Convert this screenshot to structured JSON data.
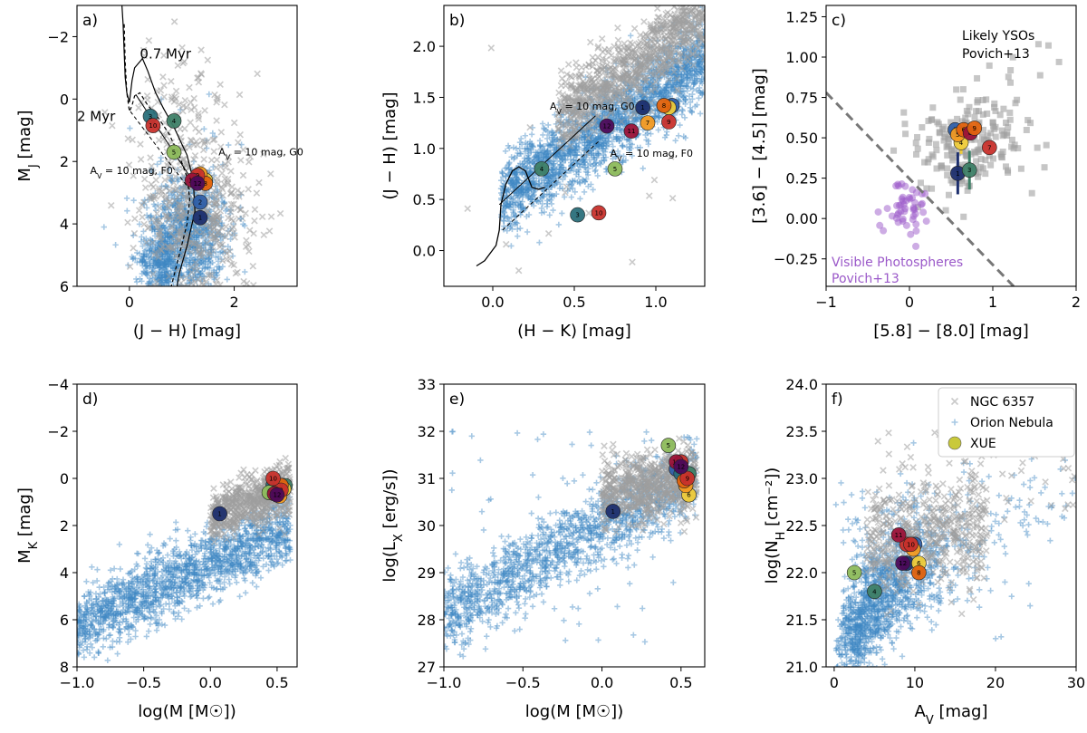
{
  "colors": {
    "ngc": "#9e9e9e",
    "orion": "#3d87c4",
    "xue": "#c9c93a",
    "purple": "#9b59c9",
    "grey_sq": "#a0a0a0",
    "dash": "#777777"
  },
  "xue_palette": [
    "#1d2f6e",
    "#2f5fa8",
    "#2a6f7a",
    "#3e8067",
    "#8dbb5b",
    "#eecb3a",
    "#f29a22",
    "#e2630e",
    "#c8322c",
    "#9a1238",
    "#4c0a5a",
    "#23134a",
    "#6a2c8a",
    "#3a7f8f"
  ],
  "chart_data": [
    {
      "id": "a",
      "panel_label": "a)",
      "type": "scatter",
      "xlabel": "(J − H) [mag]",
      "ylabel": "M_J [mag]",
      "xlim": [
        -1,
        3.2
      ],
      "ylim": [
        6,
        -3
      ],
      "y_inverted": true,
      "xticks": [
        0,
        2
      ],
      "yticks": [
        -2,
        0,
        2,
        4,
        6
      ],
      "xtick_labels": [
        "0",
        "2"
      ],
      "ytick_labels": [
        "−2",
        "0",
        "2",
        "4",
        "6"
      ],
      "annotations": [
        {
          "text": "0.7 Myr",
          "at": [
            0.2,
            -1.3
          ]
        },
        {
          "text": "2 Myr",
          "at": [
            -1.0,
            0.7
          ]
        },
        {
          "text": "A_V = 10 mag, G0",
          "at": [
            1.7,
            1.8
          ]
        },
        {
          "text": "A_V = 10 mag, F0",
          "at": [
            -0.75,
            2.4
          ]
        }
      ],
      "isochrones": {
        "0.7 Myr": [
          [
            -0.15,
            -3.2
          ],
          [
            -0.12,
            -2.4
          ],
          [
            -0.1,
            -1.5
          ],
          [
            -0.08,
            -0.7
          ],
          [
            -0.05,
            -0.2
          ],
          [
            0.0,
            0.1
          ],
          [
            0.05,
            -0.6
          ],
          [
            0.1,
            -1.0
          ],
          [
            0.25,
            -1.3
          ],
          [
            0.35,
            -0.9
          ],
          [
            0.5,
            -0.2
          ],
          [
            0.65,
            0.3
          ],
          [
            0.85,
            0.9
          ],
          [
            1.1,
            1.8
          ],
          [
            1.22,
            2.6
          ],
          [
            1.25,
            3.6
          ],
          [
            1.1,
            4.7
          ],
          [
            0.95,
            5.6
          ],
          [
            0.9,
            6.1
          ]
        ],
        "2 Myr": [
          [
            -0.1,
            -2.4
          ],
          [
            -0.08,
            -1.2
          ],
          [
            -0.05,
            -0.2
          ],
          [
            0.0,
            0.4
          ],
          [
            0.05,
            0.2
          ],
          [
            0.1,
            -0.1
          ],
          [
            0.2,
            -0.2
          ],
          [
            0.35,
            0.2
          ],
          [
            0.55,
            0.6
          ],
          [
            0.75,
            1.1
          ],
          [
            0.95,
            1.8
          ],
          [
            1.1,
            2.5
          ],
          [
            1.15,
            3.2
          ],
          [
            1.1,
            4.0
          ],
          [
            0.95,
            5.0
          ],
          [
            0.8,
            6.0
          ]
        ]
      },
      "reddening": [
        {
          "from": [
            0.12,
            -0.15
          ],
          "to": [
            1.2,
            2.6
          ]
        },
        {
          "from": [
            0.02,
            0.4
          ],
          "to": [
            1.15,
            2.9
          ]
        }
      ],
      "xue": [
        {
          "n": 1,
          "x": 1.35,
          "y": 3.8,
          "c": 0
        },
        {
          "n": 2,
          "x": 1.35,
          "y": 3.3,
          "c": 1
        },
        {
          "n": 3,
          "x": 0.4,
          "y": 0.55,
          "c": 2
        },
        {
          "n": 4,
          "x": 0.85,
          "y": 0.7,
          "c": 3
        },
        {
          "n": 5,
          "x": 0.85,
          "y": 1.7,
          "c": 4
        },
        {
          "n": 6,
          "x": 1.45,
          "y": 2.6,
          "c": 5
        },
        {
          "n": 7,
          "x": 1.35,
          "y": 2.4,
          "c": 6
        },
        {
          "n": 8,
          "x": 1.45,
          "y": 2.7,
          "c": 7
        },
        {
          "n": 9,
          "x": 1.3,
          "y": 2.45,
          "c": 8
        },
        {
          "n": 10,
          "x": 0.45,
          "y": 0.85,
          "c": 8
        },
        {
          "n": 11,
          "x": 1.2,
          "y": 2.6,
          "c": 9
        },
        {
          "n": 12,
          "x": 1.3,
          "y": 2.7,
          "c": 10
        }
      ]
    },
    {
      "id": "b",
      "panel_label": "b)",
      "type": "scatter",
      "xlabel": "(H − K) [mag]",
      "ylabel": "(J − H) [mag]",
      "xlim": [
        -0.3,
        1.3
      ],
      "ylim": [
        -0.35,
        2.4
      ],
      "xticks": [
        0,
        0.5,
        1
      ],
      "yticks": [
        0,
        0.5,
        1,
        1.5,
        2
      ],
      "xtick_labels": [
        "0.0",
        "0.5",
        "1.0"
      ],
      "ytick_labels": [
        "0.0",
        "0.5",
        "1.0",
        "1.5",
        "2.0"
      ],
      "annotations": [
        {
          "text": "A_V = 10 mag, G0",
          "at": [
            0.35,
            1.38
          ]
        },
        {
          "text": "A_V = 10 mag, F0",
          "at": [
            0.72,
            0.92
          ]
        }
      ],
      "xue": [
        {
          "n": 1,
          "x": 0.92,
          "y": 1.4,
          "c": 0
        },
        {
          "n": 2,
          "x": 1.1,
          "y": 1.42,
          "c": 1
        },
        {
          "n": 3,
          "x": 0.52,
          "y": 0.35,
          "c": 2
        },
        {
          "n": 4,
          "x": 0.3,
          "y": 0.8,
          "c": 3
        },
        {
          "n": 5,
          "x": 0.75,
          "y": 0.8,
          "c": 4
        },
        {
          "n": 6,
          "x": 1.08,
          "y": 1.4,
          "c": 5
        },
        {
          "n": 7,
          "x": 0.95,
          "y": 1.25,
          "c": 6
        },
        {
          "n": 8,
          "x": 1.05,
          "y": 1.42,
          "c": 7
        },
        {
          "n": 9,
          "x": 1.08,
          "y": 1.26,
          "c": 8
        },
        {
          "n": 10,
          "x": 0.65,
          "y": 0.37,
          "c": 8
        },
        {
          "n": 11,
          "x": 0.85,
          "y": 1.17,
          "c": 9
        },
        {
          "n": 12,
          "x": 0.7,
          "y": 1.22,
          "c": 10
        }
      ]
    },
    {
      "id": "c",
      "panel_label": "c)",
      "type": "scatter",
      "xlabel": "[5.8] − [8.0] [mag]",
      "ylabel": "[3.6] − [4.5] [mag]",
      "xlim": [
        -1,
        2
      ],
      "ylim": [
        -0.42,
        1.32
      ],
      "xticks": [
        -1,
        0,
        1,
        2
      ],
      "yticks": [
        -0.25,
        0,
        0.25,
        0.5,
        0.75,
        1,
        1.25
      ],
      "xtick_labels": [
        "−1",
        "0",
        "1",
        "2"
      ],
      "ytick_labels": [
        "−0.25",
        "0.00",
        "0.25",
        "0.50",
        "0.75",
        "1.00",
        "1.25"
      ],
      "labels": [
        {
          "lines": [
            "Likely YSOs",
            "Povich+13"
          ]
        },
        {
          "lines": [
            "Visible Photospheres",
            "Povich+13"
          ]
        }
      ],
      "dividing_line": {
        "from": [
          -1,
          0.78
        ],
        "to": [
          1.25,
          -0.42
        ]
      },
      "xue": [
        {
          "n": 1,
          "x": 0.58,
          "y": 0.28,
          "err": 0.13,
          "c": 0
        },
        {
          "n": 2,
          "x": 0.55,
          "y": 0.55,
          "err": 0,
          "c": 1
        },
        {
          "n": 3,
          "x": 0.72,
          "y": 0.3,
          "err": 0.12,
          "c": 3
        },
        {
          "n": 4,
          "x": 0.62,
          "y": 0.47,
          "err": 0.07,
          "c": 5
        },
        {
          "n": 5,
          "x": 0.58,
          "y": 0.52,
          "err": 0,
          "c": 6
        },
        {
          "n": 6,
          "x": 0.65,
          "y": 0.55,
          "err": 0,
          "c": 7
        },
        {
          "n": 7,
          "x": 0.96,
          "y": 0.44,
          "err": 0,
          "c": 8
        },
        {
          "n": 8,
          "x": 0.73,
          "y": 0.53,
          "err": 0,
          "c": 9
        },
        {
          "n": 9,
          "x": 0.78,
          "y": 0.56,
          "err": 0,
          "c": 7
        }
      ]
    },
    {
      "id": "d",
      "panel_label": "d)",
      "type": "scatter",
      "xlabel": "log(M [M☉])",
      "ylabel": "M_K [mag]",
      "xlim": [
        -1,
        0.65
      ],
      "ylim": [
        8,
        -4
      ],
      "y_inverted": true,
      "xticks": [
        -1,
        -0.5,
        0,
        0.5
      ],
      "yticks": [
        -4,
        -2,
        0,
        2,
        4,
        6,
        8
      ],
      "xtick_labels": [
        "−1.0",
        "−0.5",
        "0.0",
        "0.5"
      ],
      "ytick_labels": [
        "−4",
        "−2",
        "0",
        "2",
        "4",
        "6",
        "8"
      ],
      "xue": [
        {
          "n": 1,
          "x": 0.07,
          "y": 1.5,
          "c": 0
        },
        {
          "n": 2,
          "x": 0.48,
          "y": 0.6,
          "c": 1
        },
        {
          "n": 3,
          "x": 0.47,
          "y": 0.3,
          "c": 2
        },
        {
          "n": 4,
          "x": 0.56,
          "y": 0.3,
          "c": 3
        },
        {
          "n": 5,
          "x": 0.44,
          "y": 0.6,
          "c": 4
        },
        {
          "n": 6,
          "x": 0.55,
          "y": 0.45,
          "c": 5
        },
        {
          "n": 7,
          "x": 0.52,
          "y": 0.75,
          "c": 6
        },
        {
          "n": 8,
          "x": 0.53,
          "y": 0.3,
          "c": 7
        },
        {
          "n": 9,
          "x": 0.53,
          "y": 0.5,
          "c": 8
        },
        {
          "n": 10,
          "x": 0.47,
          "y": 0.0,
          "c": 8
        },
        {
          "n": 11,
          "x": 0.48,
          "y": 0.65,
          "c": 9
        },
        {
          "n": 12,
          "x": 0.5,
          "y": 0.7,
          "c": 10
        }
      ]
    },
    {
      "id": "e",
      "panel_label": "e)",
      "type": "scatter",
      "xlabel": "log(M [M☉])",
      "ylabel": "log(L_X [erg/s])",
      "xlim": [
        -1,
        0.65
      ],
      "ylim": [
        27,
        33
      ],
      "xticks": [
        -1,
        -0.5,
        0,
        0.5
      ],
      "yticks": [
        27,
        28,
        29,
        30,
        31,
        32,
        33
      ],
      "xtick_labels": [
        "−1.0",
        "−0.5",
        "0.0",
        "0.5"
      ],
      "ytick_labels": [
        "27",
        "28",
        "29",
        "30",
        "31",
        "32",
        "33"
      ],
      "xue": [
        {
          "n": 1,
          "x": 0.07,
          "y": 30.3,
          "c": 0
        },
        {
          "n": 2,
          "x": 0.47,
          "y": 31.2,
          "c": 1
        },
        {
          "n": 3,
          "x": 0.5,
          "y": 31.1,
          "c": 2
        },
        {
          "n": 4,
          "x": 0.55,
          "y": 31.1,
          "c": 3
        },
        {
          "n": 5,
          "x": 0.42,
          "y": 31.7,
          "c": 4
        },
        {
          "n": 6,
          "x": 0.55,
          "y": 30.65,
          "c": 5
        },
        {
          "n": 7,
          "x": 0.53,
          "y": 30.85,
          "c": 6
        },
        {
          "n": 8,
          "x": 0.52,
          "y": 30.95,
          "c": 7
        },
        {
          "n": 9,
          "x": 0.54,
          "y": 31.0,
          "c": 8
        },
        {
          "n": 10,
          "x": 0.5,
          "y": 31.35,
          "c": 8
        },
        {
          "n": 11,
          "x": 0.47,
          "y": 31.35,
          "c": 9
        },
        {
          "n": 12,
          "x": 0.5,
          "y": 31.25,
          "c": 10
        }
      ]
    },
    {
      "id": "f",
      "panel_label": "f)",
      "type": "scatter",
      "xlabel": "A_V [mag]",
      "ylabel": "log(N_H [cm⁻²])",
      "xlim": [
        -1,
        30
      ],
      "ylim": [
        21,
        24
      ],
      "xticks": [
        0,
        10,
        20,
        30
      ],
      "yticks": [
        21,
        21.5,
        22,
        22.5,
        23,
        23.5,
        24
      ],
      "xtick_labels": [
        "0",
        "10",
        "20",
        "30"
      ],
      "ytick_labels": [
        "21.0",
        "21.5",
        "22.0",
        "22.5",
        "23.0",
        "23.5",
        "24.0"
      ],
      "legend": {
        "placement": "top-right",
        "entries": [
          "NGC 6357",
          "Orion Nebula",
          "XUE"
        ]
      },
      "xue": [
        {
          "n": 1,
          "x": 9.0,
          "y": 22.1,
          "c": 0
        },
        {
          "n": 2,
          "x": 10.0,
          "y": 22.3,
          "c": 1
        },
        {
          "n": 3,
          "x": 9.5,
          "y": 22.3,
          "c": 2
        },
        {
          "n": 4,
          "x": 5.0,
          "y": 21.8,
          "c": 3
        },
        {
          "n": 5,
          "x": 2.5,
          "y": 22.0,
          "c": 4
        },
        {
          "n": 6,
          "x": 10.5,
          "y": 22.1,
          "c": 5
        },
        {
          "n": 7,
          "x": 9.8,
          "y": 22.25,
          "c": 6
        },
        {
          "n": 8,
          "x": 10.5,
          "y": 22.0,
          "c": 7
        },
        {
          "n": 9,
          "x": 9.0,
          "y": 22.3,
          "c": 8
        },
        {
          "n": 10,
          "x": 9.5,
          "y": 22.3,
          "c": 8
        },
        {
          "n": 11,
          "x": 8.0,
          "y": 22.4,
          "c": 9
        },
        {
          "n": 12,
          "x": 8.5,
          "y": 22.1,
          "c": 10
        }
      ]
    }
  ]
}
